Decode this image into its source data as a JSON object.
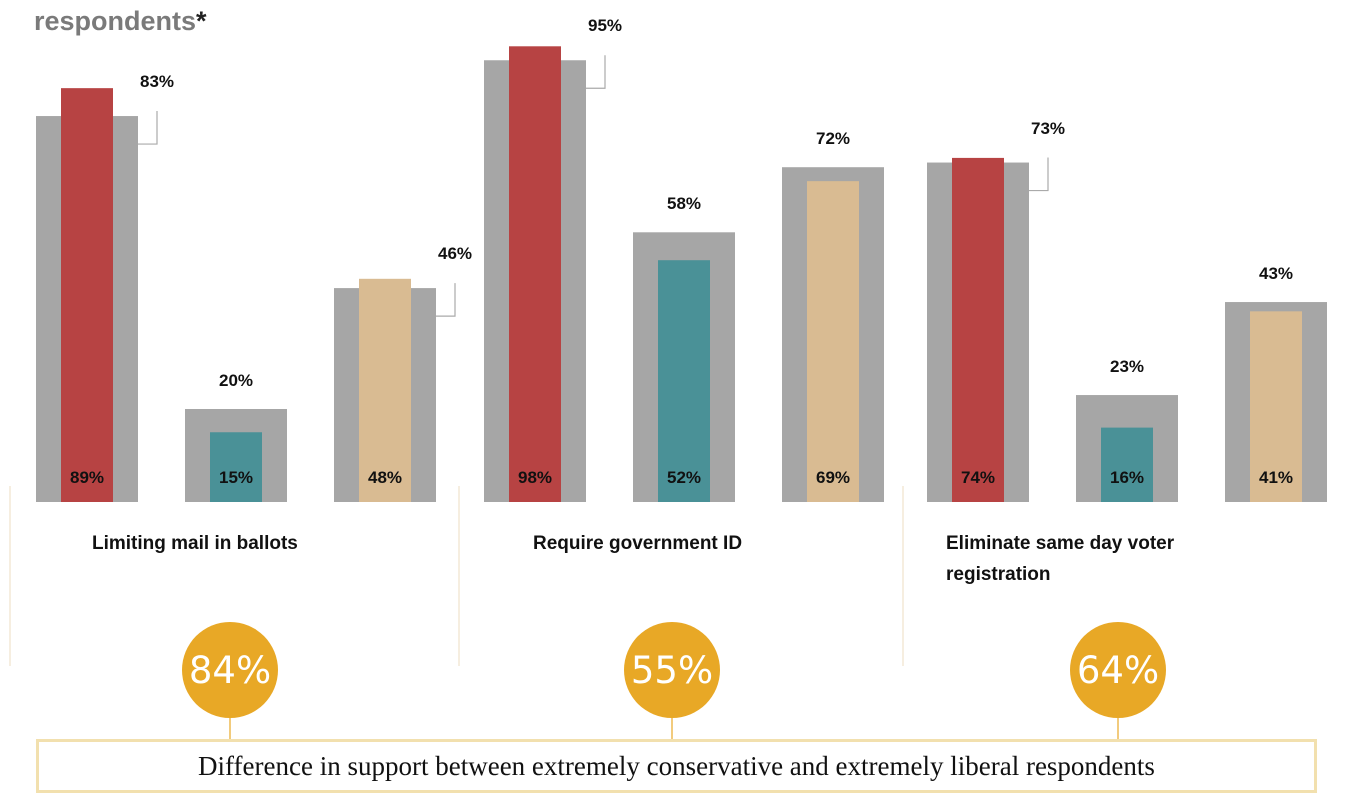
{
  "title": "respondents",
  "title_marker": "*",
  "colors": {
    "total": "#a6a6a6",
    "conservative": "#b74343",
    "liberal": "#4a9197",
    "moderate": "#d9bb92",
    "highlight": "#e8a826",
    "box_border": "#f2e0ae",
    "divider": "#efe3cc",
    "connector": "#aaaaaa"
  },
  "chart_data": {
    "type": "bar",
    "title": "respondents*",
    "ylim": [
      0,
      100
    ],
    "grid": false,
    "legend": "none",
    "series_order": [
      "total",
      "conservative",
      "liberal",
      "moderate"
    ],
    "groups": [
      {
        "label": "Limiting mail in ballots",
        "bars": [
          {
            "outer": 83,
            "inner": 89,
            "inner_color": "conservative",
            "outer_label": "83%",
            "inner_label": "89%",
            "connector": true
          },
          {
            "outer": 20,
            "inner": 15,
            "inner_color": "liberal",
            "outer_label": "20%",
            "inner_label": "15%",
            "connector": false
          },
          {
            "outer": 46,
            "inner": 48,
            "inner_color": "moderate",
            "outer_label": "46%",
            "inner_label": "48%",
            "connector": true
          }
        ],
        "difference": "84%"
      },
      {
        "label": "Require government ID",
        "bars": [
          {
            "outer": 95,
            "inner": 98,
            "inner_color": "conservative",
            "outer_label": "95%",
            "inner_label": "98%",
            "connector": true
          },
          {
            "outer": 58,
            "inner": 52,
            "inner_color": "liberal",
            "outer_label": "58%",
            "inner_label": "52%",
            "connector": false
          },
          {
            "outer": 72,
            "inner": 69,
            "inner_color": "moderate",
            "outer_label": "72%",
            "inner_label": "69%",
            "connector": false
          }
        ],
        "difference": "55%"
      },
      {
        "label": "Eliminate same day voter registration",
        "bars": [
          {
            "outer": 73,
            "inner": 74,
            "inner_color": "conservative",
            "outer_label": "73%",
            "inner_label": "74%",
            "connector": true
          },
          {
            "outer": 23,
            "inner": 16,
            "inner_color": "liberal",
            "outer_label": "23%",
            "inner_label": "16%",
            "connector": false
          },
          {
            "outer": 43,
            "inner": 41,
            "inner_color": "moderate",
            "outer_label": "43%",
            "inner_label": "41%",
            "connector": false
          }
        ],
        "difference": "64%"
      }
    ]
  },
  "footer": {
    "difference_caption": "Difference in support between extremely conservative and extremely liberal respondents"
  }
}
